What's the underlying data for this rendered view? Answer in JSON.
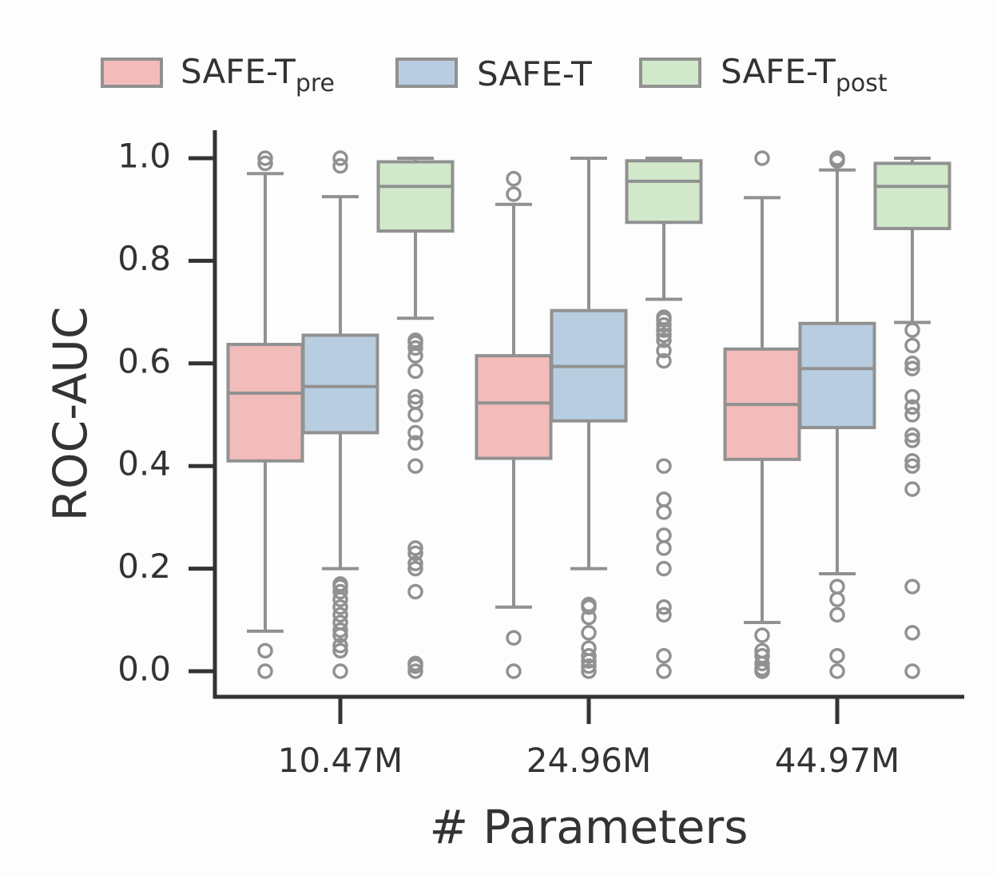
{
  "chart_data": {
    "type": "box",
    "xlabel": "# Parameters",
    "ylabel": "ROC-AUC",
    "categories": [
      "10.47M",
      "24.96M",
      "44.97M"
    ],
    "ylim": [
      -0.05,
      1.05
    ],
    "yticks": [
      0.0,
      0.2,
      0.4,
      0.6,
      0.8,
      1.0
    ],
    "ytick_labels": [
      "0.0",
      "0.2",
      "0.4",
      "0.6",
      "0.8",
      "1.0"
    ],
    "grid": false,
    "legend": {
      "placement": "top-center",
      "entries": [
        {
          "base": "SAFE-T",
          "sub": "pre"
        },
        {
          "base": "SAFE-T",
          "sub": ""
        },
        {
          "base": "SAFE-T",
          "sub": "post"
        }
      ]
    },
    "series": [
      {
        "name": "SAFE-Tpre",
        "color": "#f2bcbb",
        "boxes": [
          {
            "q1": 0.41,
            "median": 0.542,
            "q3": 0.637,
            "whislo": 0.078,
            "whishi": 0.97,
            "fliers": [
              0.0,
              0.04,
              0.99,
              1.0
            ]
          },
          {
            "q1": 0.415,
            "median": 0.523,
            "q3": 0.615,
            "whislo": 0.125,
            "whishi": 0.91,
            "fliers": [
              0.0,
              0.065,
              0.93,
              0.96
            ]
          },
          {
            "q1": 0.413,
            "median": 0.52,
            "q3": 0.628,
            "whislo": 0.095,
            "whishi": 0.923,
            "fliers": [
              0.0,
              0.005,
              0.015,
              0.03,
              0.04,
              0.07,
              1.0
            ]
          }
        ]
      },
      {
        "name": "SAFE-T",
        "color": "#b8cde0",
        "boxes": [
          {
            "q1": 0.465,
            "median": 0.555,
            "q3": 0.655,
            "whislo": 0.2,
            "whishi": 0.925,
            "fliers": [
              0.0,
              0.04,
              0.05,
              0.07,
              0.08,
              0.095,
              0.11,
              0.125,
              0.14,
              0.155,
              0.165,
              0.17,
              0.985,
              1.0
            ]
          },
          {
            "q1": 0.488,
            "median": 0.594,
            "q3": 0.703,
            "whislo": 0.2,
            "whishi": 1.0,
            "fliers": [
              0.0,
              0.01,
              0.02,
              0.03,
              0.045,
              0.075,
              0.105,
              0.125,
              0.13
            ]
          },
          {
            "q1": 0.475,
            "median": 0.59,
            "q3": 0.678,
            "whislo": 0.19,
            "whishi": 0.977,
            "fliers": [
              0.0,
              0.03,
              0.11,
              0.14,
              0.165,
              0.995,
              1.0
            ]
          }
        ]
      },
      {
        "name": "SAFE-Tpost",
        "color": "#d1e9ca",
        "boxes": [
          {
            "q1": 0.858,
            "median": 0.945,
            "q3": 0.993,
            "whislo": 0.688,
            "whishi": 1.0,
            "fliers": [
              0.0,
              0.01,
              0.015,
              0.155,
              0.2,
              0.21,
              0.23,
              0.24,
              0.4,
              0.445,
              0.465,
              0.5,
              0.525,
              0.535,
              0.585,
              0.615,
              0.63,
              0.64,
              0.645
            ]
          },
          {
            "q1": 0.875,
            "median": 0.955,
            "q3": 0.995,
            "whislo": 0.725,
            "whishi": 1.0,
            "fliers": [
              0.0,
              0.03,
              0.11,
              0.125,
              0.2,
              0.24,
              0.265,
              0.31,
              0.335,
              0.4,
              0.605,
              0.625,
              0.645,
              0.655,
              0.665,
              0.675,
              0.685,
              0.69
            ]
          },
          {
            "q1": 0.863,
            "median": 0.945,
            "q3": 0.99,
            "whislo": 0.68,
            "whishi": 1.0,
            "fliers": [
              0.0,
              0.075,
              0.165,
              0.355,
              0.4,
              0.41,
              0.45,
              0.46,
              0.5,
              0.515,
              0.535,
              0.59,
              0.6,
              0.635,
              0.665
            ]
          }
        ]
      }
    ]
  }
}
